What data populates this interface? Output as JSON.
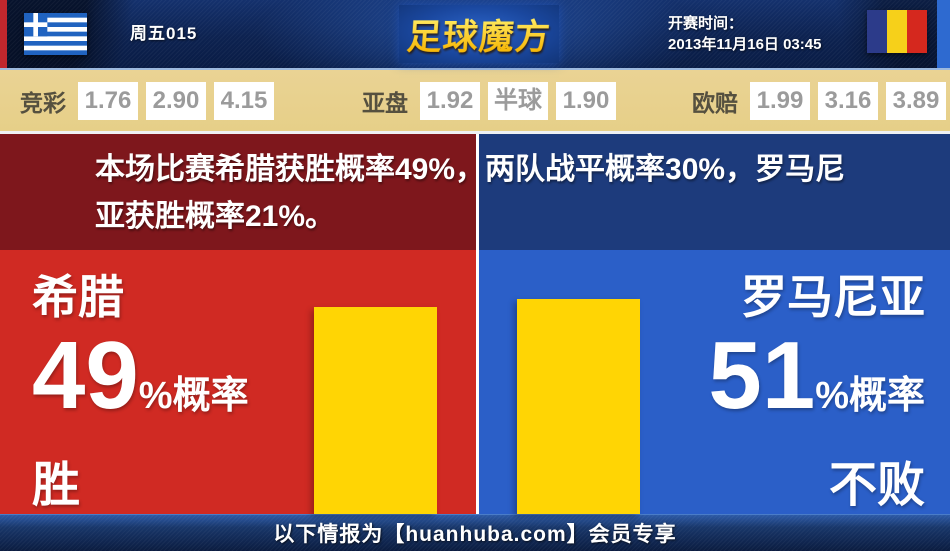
{
  "header": {
    "match_label": "周五015",
    "logo": "足球魔方",
    "kickoff_label": "开赛时间：",
    "kickoff_time": "2013年11月16日 03:45",
    "home_flag": "greece-flag",
    "away_flag": "romania-flag"
  },
  "odds": {
    "jingcai": {
      "label": "竞彩",
      "values": [
        "1.76",
        "2.90",
        "4.15"
      ]
    },
    "yapan": {
      "label": "亚盘",
      "home": "1.92",
      "handicap": "半球",
      "away": "1.90"
    },
    "oupei": {
      "label": "欧赔",
      "values": [
        "1.99",
        "3.16",
        "3.89"
      ]
    }
  },
  "summary": {
    "line1": "本场比赛希腊获胜概率49%，两队战平概率30%，罗马尼",
    "line2": "亚获胜概率21%。",
    "full_text": "本场比赛希腊获胜概率49%，两队战平概率30%，罗马尼亚获胜概率21%。"
  },
  "teams": {
    "home": {
      "name": "希腊",
      "percent": "49",
      "percent_num": 49,
      "percent_suffix": "%概率",
      "outcome": "胜"
    },
    "away": {
      "name": "罗马尼亚",
      "percent": "51",
      "percent_num": 51,
      "percent_suffix": "%概率",
      "outcome": "不败"
    }
  },
  "footer": {
    "text": "以下情报为【huanhuba.com】会员专享"
  },
  "chart_data": {
    "type": "bar",
    "categories": [
      "希腊 胜",
      "罗马尼亚 不败"
    ],
    "values": [
      49,
      51
    ],
    "unit": "%概率",
    "ylim": [
      0,
      62.5
    ],
    "bar_color": "#ffd504"
  },
  "colors": {
    "home_red": "#d02a23",
    "home_red_dark": "#7e171c",
    "away_blue": "#2b5fc8",
    "away_blue_dark": "#1d3b7c",
    "bar_yellow": "#ffd504",
    "odds_bg_tan": "#e6cf88",
    "header_navy": "#0d2250",
    "logo_gold": "#ffd21a"
  }
}
